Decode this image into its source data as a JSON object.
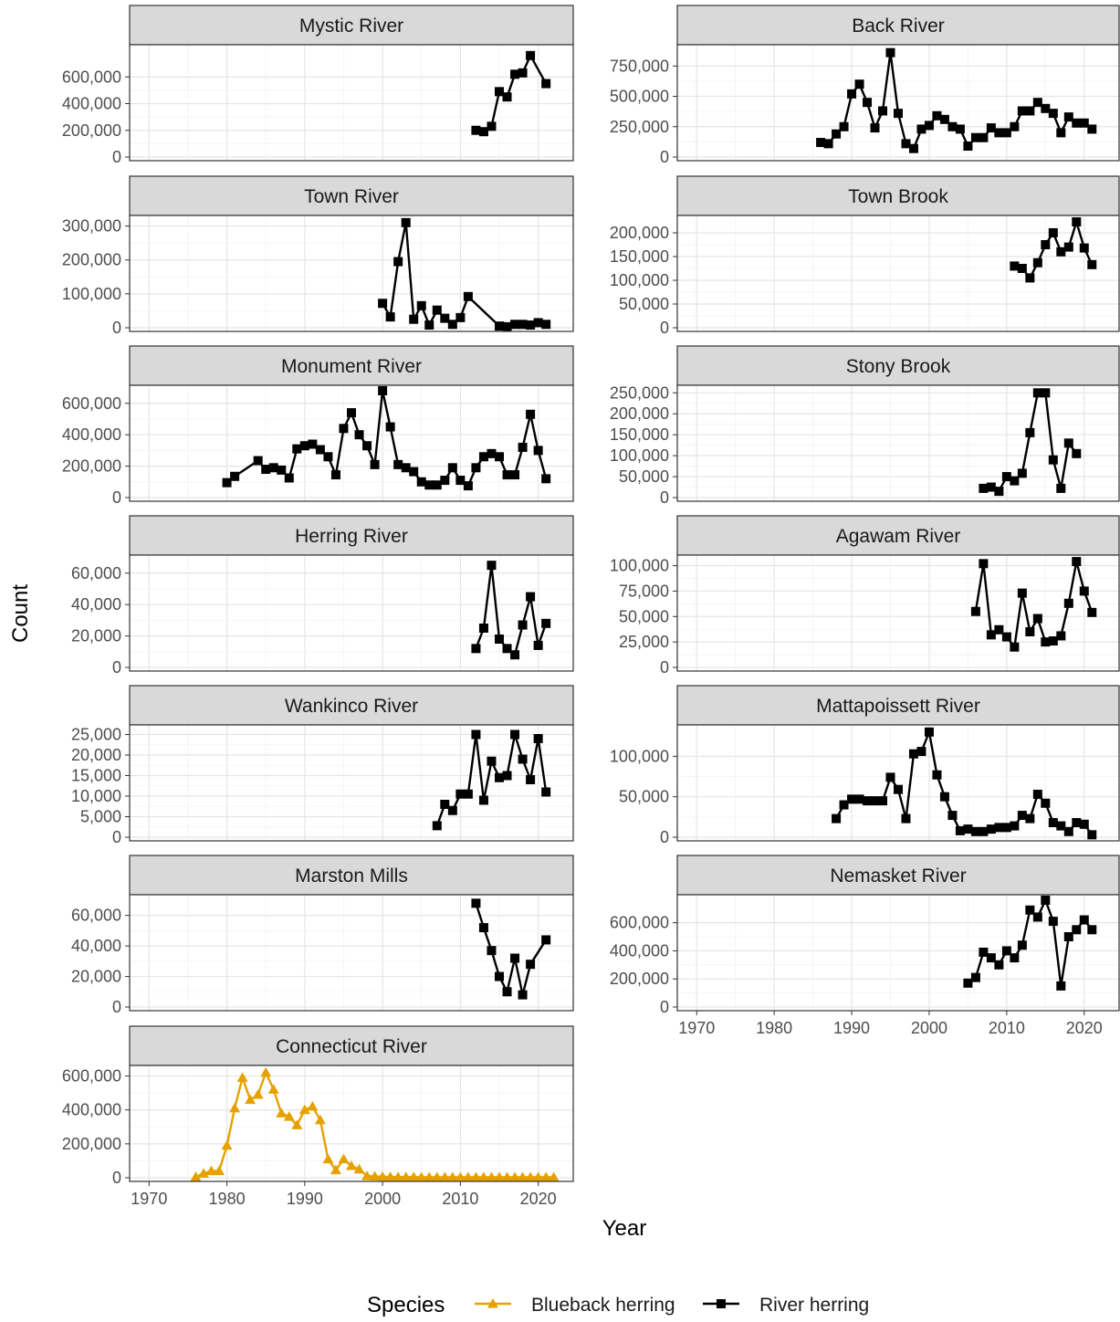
{
  "chart_data": {
    "type": "line",
    "ylabel": "Count",
    "xlabel": "Year",
    "legend": {
      "position": "bottom",
      "title": "Species",
      "entries": [
        {
          "name": "Blueback herring",
          "color": "#E6A100",
          "marker": "triangle"
        },
        {
          "name": "River herring",
          "color": "#000000",
          "marker": "square"
        }
      ]
    },
    "x_ticks": [
      1970,
      1980,
      1990,
      2000,
      2010,
      2020
    ],
    "xlim": [
      1967.5,
      2024.5
    ],
    "grid": true,
    "panels": [
      {
        "title": "Mystic River",
        "species": "River herring",
        "ylim": [
          0,
          800000
        ],
        "y_ticks": [
          0,
          200000,
          400000,
          600000
        ],
        "y_tick_labels": [
          "0",
          "200,000",
          "400,000",
          "600,000"
        ],
        "x": [
          2012,
          2013,
          2014,
          2015,
          2016,
          2017,
          2018,
          2019,
          2021
        ],
        "y": [
          200000,
          190000,
          230000,
          490000,
          450000,
          620000,
          630000,
          760000,
          550000
        ]
      },
      {
        "title": "Back River",
        "species": "River herring",
        "ylim": [
          0,
          880000
        ],
        "y_ticks": [
          0,
          250000,
          500000,
          750000
        ],
        "y_tick_labels": [
          "0",
          "250,000",
          "500,000",
          "750,000"
        ],
        "x": [
          1986,
          1987,
          1988,
          1989,
          1990,
          1991,
          1992,
          1993,
          1994,
          1995,
          1996,
          1997,
          1998,
          1999,
          2000,
          2001,
          2002,
          2003,
          2004,
          2005,
          2006,
          2007,
          2008,
          2009,
          2010,
          2011,
          2012,
          2013,
          2014,
          2015,
          2016,
          2017,
          2018,
          2019,
          2020,
          2021
        ],
        "y": [
          120000,
          110000,
          190000,
          250000,
          520000,
          600000,
          450000,
          240000,
          380000,
          860000,
          360000,
          110000,
          70000,
          230000,
          260000,
          340000,
          310000,
          250000,
          230000,
          90000,
          160000,
          160000,
          240000,
          200000,
          200000,
          250000,
          380000,
          380000,
          450000,
          400000,
          360000,
          200000,
          330000,
          280000,
          280000,
          230000
        ]
      },
      {
        "title": "Town River",
        "species": "River herring",
        "ylim": [
          0,
          315000
        ],
        "y_ticks": [
          0,
          100000,
          200000,
          300000
        ],
        "y_tick_labels": [
          "0",
          "100,000",
          "200,000",
          "300,000"
        ],
        "x": [
          2000,
          2001,
          2002,
          2003,
          2004,
          2005,
          2006,
          2007,
          2008,
          2009,
          2010,
          2011,
          2015,
          2016,
          2017,
          2018,
          2019,
          2020,
          2021
        ],
        "y": [
          72000,
          32000,
          195000,
          310000,
          25000,
          65000,
          8000,
          52000,
          28000,
          10000,
          30000,
          92000,
          5000,
          3000,
          10000,
          10000,
          8000,
          15000,
          10000
        ]
      },
      {
        "title": "Town Brook",
        "species": "River herring",
        "ylim": [
          0,
          225000
        ],
        "y_ticks": [
          0,
          50000,
          100000,
          150000,
          200000
        ],
        "y_tick_labels": [
          "0",
          "50,000",
          "100,000",
          "150,000",
          "200,000"
        ],
        "x": [
          2011,
          2012,
          2013,
          2014,
          2015,
          2016,
          2017,
          2018,
          2019,
          2020,
          2021
        ],
        "y": [
          130000,
          125000,
          105000,
          137000,
          175000,
          200000,
          160000,
          170000,
          223000,
          168000,
          133000
        ]
      },
      {
        "title": "Monument River",
        "species": "River herring",
        "ylim": [
          0,
          680000
        ],
        "y_ticks": [
          0,
          200000,
          400000,
          600000
        ],
        "y_tick_labels": [
          "0",
          "200,000",
          "400,000",
          "600,000"
        ],
        "x": [
          1980,
          1981,
          1984,
          1985,
          1986,
          1987,
          1988,
          1989,
          1990,
          1991,
          1992,
          1993,
          1994,
          1995,
          1996,
          1997,
          1998,
          1999,
          2000,
          2001,
          2002,
          2003,
          2004,
          2005,
          2006,
          2007,
          2008,
          2009,
          2010,
          2011,
          2012,
          2013,
          2014,
          2015,
          2016,
          2017,
          2018,
          2019,
          2020,
          2021
        ],
        "y": [
          95000,
          135000,
          235000,
          180000,
          190000,
          175000,
          125000,
          310000,
          330000,
          340000,
          305000,
          260000,
          145000,
          440000,
          540000,
          400000,
          330000,
          210000,
          680000,
          450000,
          210000,
          190000,
          165000,
          100000,
          80000,
          80000,
          110000,
          190000,
          110000,
          75000,
          190000,
          260000,
          280000,
          260000,
          145000,
          145000,
          320000,
          530000,
          300000,
          120000
        ]
      },
      {
        "title": "Stony Brook",
        "species": "River herring",
        "ylim": [
          0,
          255000
        ],
        "y_ticks": [
          0,
          50000,
          100000,
          150000,
          200000,
          250000
        ],
        "y_tick_labels": [
          "0",
          "50,000",
          "100,000",
          "150,000",
          "200,000",
          "250,000"
        ],
        "x": [
          2007,
          2008,
          2009,
          2010,
          2011,
          2012,
          2013,
          2014,
          2015,
          2016,
          2017,
          2018,
          2019
        ],
        "y": [
          22000,
          25000,
          15000,
          50000,
          40000,
          58000,
          155000,
          250000,
          250000,
          90000,
          22000,
          130000,
          105000
        ]
      },
      {
        "title": "Herring River",
        "species": "River herring",
        "ylim": [
          0,
          68000
        ],
        "y_ticks": [
          0,
          20000,
          40000,
          60000
        ],
        "y_tick_labels": [
          "0",
          "20,000",
          "40,000",
          "60,000"
        ],
        "x": [
          2012,
          2013,
          2014,
          2015,
          2016,
          2017,
          2018,
          2019,
          2020,
          2021
        ],
        "y": [
          12000,
          25000,
          65000,
          18000,
          12000,
          8000,
          27000,
          45000,
          14000,
          28000
        ]
      },
      {
        "title": "Agawam River",
        "species": "River herring",
        "ylim": [
          0,
          105000
        ],
        "y_ticks": [
          0,
          25000,
          50000,
          75000,
          100000
        ],
        "y_tick_labels": [
          "0",
          "25,000",
          "50,000",
          "75,000",
          "100,000"
        ],
        "x": [
          2006,
          2007,
          2008,
          2009,
          2010,
          2011,
          2012,
          2013,
          2014,
          2015,
          2016,
          2017,
          2018,
          2019,
          2020,
          2021
        ],
        "y": [
          55000,
          102000,
          32000,
          37000,
          30000,
          20000,
          73000,
          35000,
          48000,
          25000,
          26000,
          31000,
          63000,
          104000,
          75000,
          54000
        ]
      },
      {
        "title": "Wankinco River",
        "species": "River herring",
        "ylim": [
          0,
          26000
        ],
        "y_ticks": [
          0,
          5000,
          10000,
          15000,
          20000,
          25000
        ],
        "y_tick_labels": [
          "0",
          "5,000",
          "10,000",
          "15,000",
          "20,000",
          "25,000"
        ],
        "x": [
          2007,
          2008,
          2009,
          2010,
          2011,
          2012,
          2013,
          2014,
          2015,
          2016,
          2017,
          2018,
          2019,
          2020,
          2021
        ],
        "y": [
          2800,
          8000,
          6500,
          10500,
          10500,
          25000,
          9000,
          18500,
          14500,
          15000,
          25000,
          19000,
          14000,
          24000,
          11000
        ]
      },
      {
        "title": "Mattapoissett River",
        "species": "River herring",
        "ylim": [
          0,
          132000
        ],
        "y_ticks": [
          0,
          50000,
          100000
        ],
        "y_tick_labels": [
          "0",
          "50,000",
          "100,000"
        ],
        "x": [
          1988,
          1989,
          1990,
          1991,
          1992,
          1993,
          1994,
          1995,
          1996,
          1997,
          1998,
          1999,
          2000,
          2001,
          2002,
          2003,
          2004,
          2005,
          2006,
          2007,
          2008,
          2009,
          2010,
          2011,
          2012,
          2013,
          2014,
          2015,
          2016,
          2017,
          2018,
          2019,
          2020,
          2021
        ],
        "y": [
          23000,
          40000,
          47000,
          47000,
          45000,
          45000,
          45000,
          74000,
          59000,
          23000,
          103000,
          106000,
          130000,
          77000,
          50000,
          27000,
          8000,
          10000,
          7000,
          7000,
          10000,
          12000,
          12000,
          14000,
          27000,
          23000,
          53000,
          42000,
          18000,
          14000,
          7000,
          18000,
          16000,
          3000
        ]
      },
      {
        "title": "Marston Mills",
        "species": "River herring",
        "ylim": [
          0,
          70000
        ],
        "y_ticks": [
          0,
          20000,
          40000,
          60000
        ],
        "y_tick_labels": [
          "0",
          "20,000",
          "40,000",
          "60,000"
        ],
        "x": [
          2012,
          2013,
          2014,
          2015,
          2016,
          2017,
          2018,
          2019,
          2021
        ],
        "y": [
          68000,
          52000,
          37000,
          20000,
          10000,
          32000,
          8000,
          28000,
          44000
        ]
      },
      {
        "title": "Nemasket River",
        "species": "River herring",
        "ylim": [
          0,
          760000
        ],
        "y_ticks": [
          0,
          200000,
          400000,
          600000
        ],
        "y_tick_labels": [
          "0",
          "200,000",
          "400,000",
          "600,000"
        ],
        "x": [
          2005,
          2006,
          2007,
          2008,
          2009,
          2010,
          2011,
          2012,
          2013,
          2014,
          2015,
          2016,
          2017,
          2018,
          2019,
          2020,
          2021
        ],
        "y": [
          170000,
          210000,
          390000,
          350000,
          300000,
          400000,
          350000,
          440000,
          690000,
          640000,
          760000,
          610000,
          150000,
          500000,
          550000,
          620000,
          550000
        ]
      },
      {
        "title": "Connecticut River",
        "species": "Blueback herring",
        "ylim": [
          0,
          630000
        ],
        "y_ticks": [
          0,
          200000,
          400000,
          600000
        ],
        "y_tick_labels": [
          "0",
          "200,000",
          "400,000",
          "600,000"
        ],
        "x": [
          1976,
          1977,
          1978,
          1979,
          1980,
          1981,
          1982,
          1983,
          1984,
          1985,
          1986,
          1987,
          1988,
          1989,
          1990,
          1991,
          1992,
          1993,
          1994,
          1995,
          1996,
          1997,
          1998,
          1999,
          2000,
          2001,
          2002,
          2003,
          2004,
          2005,
          2006,
          2007,
          2008,
          2009,
          2010,
          2011,
          2012,
          2013,
          2014,
          2015,
          2016,
          2017,
          2018,
          2019,
          2020,
          2021,
          2022
        ],
        "y": [
          5000,
          25000,
          40000,
          40000,
          190000,
          410000,
          590000,
          460000,
          490000,
          620000,
          520000,
          380000,
          360000,
          310000,
          400000,
          420000,
          340000,
          110000,
          45000,
          110000,
          70000,
          50000,
          10000,
          8000,
          6000,
          5000,
          4000,
          4000,
          4000,
          3000,
          3000,
          3000,
          3000,
          3000,
          3000,
          3000,
          3000,
          3000,
          3000,
          3000,
          3000,
          3000,
          3000,
          3000,
          3000,
          3000,
          3000
        ]
      }
    ]
  }
}
